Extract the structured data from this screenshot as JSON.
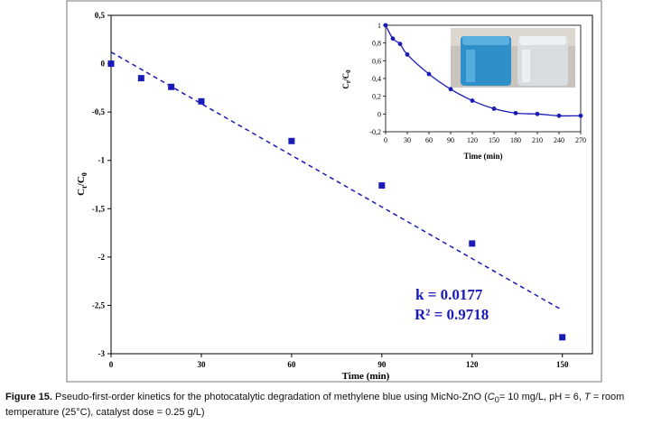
{
  "chart_data": [
    {
      "type": "scatter",
      "xlabel": "Time (min)",
      "ylabel_main": "C",
      "ylabel_sub1": "t",
      "ylabel_mid": "/C",
      "ylabel_sub2": "0",
      "xlim": [
        0,
        160
      ],
      "ylim": [
        -3,
        0.5
      ],
      "x_ticks": [
        0,
        30,
        60,
        90,
        120,
        150
      ],
      "y_ticks": [
        0.5,
        0,
        -0.5,
        -1,
        -1.5,
        -2,
        -2.5,
        -3
      ],
      "y_tick_labels": [
        "0,5",
        "0",
        "-0,5",
        "-1",
        "-1,5",
        "-2",
        "-2,5",
        "-3"
      ],
      "series": [
        {
          "x": [
            0,
            10,
            20,
            30,
            60,
            90,
            120,
            150
          ],
          "y": [
            0,
            -0.15,
            -0.24,
            -0.39,
            -0.8,
            -1.26,
            -1.86,
            -2.83
          ]
        }
      ],
      "fit_line": {
        "x": [
          0,
          150
        ],
        "y": [
          0.12,
          -2.55
        ]
      },
      "annotations": {
        "k": "k = 0.0177",
        "r2": "R² = 0.9718"
      },
      "grid": false,
      "marker_color": "#1a1ab8"
    },
    {
      "type": "line",
      "xlabel": "Time (min)",
      "ylabel_main": "C",
      "ylabel_sub1": "t",
      "ylabel_mid": "/C",
      "ylabel_sub2": "0",
      "xlim": [
        0,
        270
      ],
      "ylim": [
        -0.2,
        1
      ],
      "x_ticks": [
        0,
        30,
        60,
        90,
        120,
        150,
        180,
        210,
        240,
        270
      ],
      "y_ticks": [
        1,
        0.8,
        0.6,
        0.4,
        0.2,
        0,
        -0.2
      ],
      "y_tick_labels": [
        "1",
        "0,8",
        "0,6",
        "0,4",
        "0,2",
        "0",
        "-0,2"
      ],
      "series": [
        {
          "x": [
            0,
            10,
            20,
            30,
            60,
            90,
            120,
            150,
            180,
            210,
            240,
            270
          ],
          "y": [
            1,
            0.85,
            0.79,
            0.67,
            0.45,
            0.28,
            0.15,
            0.06,
            0.01,
            0.0,
            -0.02,
            -0.02
          ]
        }
      ],
      "grid": false,
      "marker_color": "#1a1ab8"
    }
  ],
  "caption": {
    "label": "Figure 15.",
    "text_a": " Pseudo-first-order kinetics for the photocatalytic degradation of methylene blue using MicNo-ZnO (",
    "c0": "C",
    "c0_sub": "0",
    "text_b": "= 10 mg/L, pH = 6, ",
    "t_ital": "T",
    "text_c": " = room temperature (25°C), catalyst dose = 0.25 g/L)"
  }
}
